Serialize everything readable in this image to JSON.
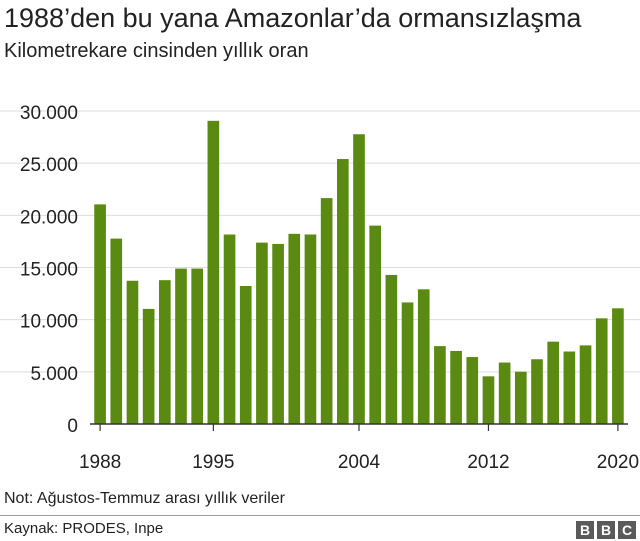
{
  "header": {
    "title": "1988’den bu yana Amazonlar’da ormansızlaşma",
    "subtitle": "Kilometrekare cinsinden yıllık oran"
  },
  "footer": {
    "note": "Not: Ağustos-Temmuz arası yıllık veriler",
    "source": "Kaynak: PRODES, Inpe",
    "logo_letters": [
      "B",
      "B",
      "C"
    ]
  },
  "colors": {
    "bar": "#5b8a12",
    "grid": "#dddddd",
    "axis": "#333333",
    "text": "#222222"
  },
  "chart_data": {
    "type": "bar",
    "title": "1988’den bu yana Amazonlar’da ormansızlaşma",
    "subtitle": "Kilometrekare cinsinden yıllık oran",
    "xlabel": "",
    "ylabel": "",
    "categories": [
      1988,
      1989,
      1990,
      1991,
      1992,
      1993,
      1994,
      1995,
      1996,
      1997,
      1998,
      1999,
      2000,
      2001,
      2002,
      2003,
      2004,
      2005,
      2006,
      2007,
      2008,
      2009,
      2010,
      2011,
      2012,
      2013,
      2014,
      2015,
      2016,
      2017,
      2018,
      2019,
      2020
    ],
    "values": [
      21050,
      17770,
      13730,
      11030,
      13786,
      14896,
      14896,
      29059,
      18161,
      13227,
      17383,
      17259,
      18226,
      18165,
      21651,
      25396,
      27772,
      19014,
      14286,
      11651,
      12911,
      7464,
      7000,
      6418,
      4571,
      5891,
      5012,
      6207,
      7893,
      6947,
      7536,
      10129,
      11088
    ],
    "x_tick_labels": [
      {
        "year": 1988,
        "label": "1988"
      },
      {
        "year": 1995,
        "label": "1995"
      },
      {
        "year": 2004,
        "label": "2004"
      },
      {
        "year": 2012,
        "label": "2012"
      },
      {
        "year": 2020,
        "label": "2020"
      }
    ],
    "y_ticks": [
      0,
      5000,
      10000,
      15000,
      20000,
      25000,
      30000
    ],
    "y_tick_labels": [
      "0",
      "5.000",
      "10.000",
      "15.000",
      "20.000",
      "25.000",
      "30.000"
    ],
    "ylim": [
      0,
      30000
    ],
    "grid": true,
    "legend": "none"
  }
}
